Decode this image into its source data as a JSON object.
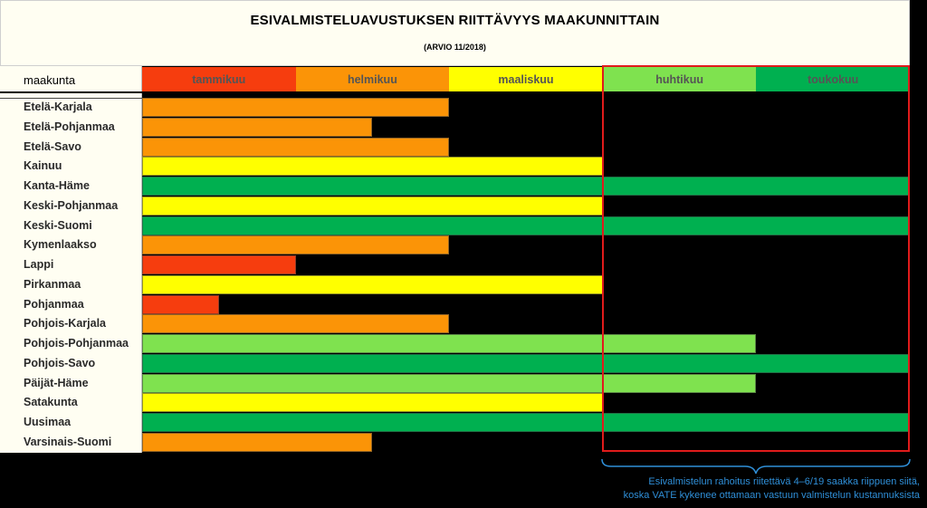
{
  "title": "ESIVALMISTELUAVUSTUKSEN RIITTÄVYYS MAAKUNNITTAIN",
  "subtitle": "(ARVIO 11/2018)",
  "label_header": "maakunta",
  "note": {
    "line1": "Esivalmistelun rahoitus riitettävä 4–6/19 saakka riippuen siitä,",
    "line2": "koska VATE kykenee ottamaan vastuun valmistelun kustannuksista"
  },
  "colors": {
    "tammikuu": "#f63d0e",
    "helmikuu": "#fb9407",
    "maaliskuu": "#ffff00",
    "huhtikuu": "#7fe24f",
    "toukokuu": "#00b050",
    "highlight": "#e01b1b",
    "note": "#2f8fd8"
  },
  "chart_data": {
    "type": "bar",
    "orientation": "horizontal",
    "title": "ESIVALMISTELUAVUSTUKSEN RIITTÄVYYS MAAKUNNITTAIN",
    "subtitle": "(ARVIO 11/2018)",
    "category_header": "maakunta",
    "months": [
      "tammikuu",
      "helmikuu",
      "maaliskuu",
      "huhtikuu",
      "toukokuu"
    ],
    "xlim": [
      0,
      5
    ],
    "unit": "months of funding",
    "highlight_months": [
      "huhtikuu",
      "toukokuu"
    ],
    "categories": [
      "Etelä-Karjala",
      "Etelä-Pohjanmaa",
      "Etelä-Savo",
      "Kainuu",
      "Kanta-Häme",
      "Keski-Pohjanmaa",
      "Keski-Suomi",
      "Kymenlaakso",
      "Lappi",
      "Pirkanmaa",
      "Pohjanmaa",
      "Pohjois-Karjala",
      "Pohjois-Pohjanmaa",
      "Pohjois-Savo",
      "Päijät-Häme",
      "Satakunta",
      "Uusimaa",
      "Varsinais-Suomi"
    ],
    "values": [
      2,
      1.5,
      2,
      3,
      5,
      3,
      5,
      2,
      1,
      3,
      0.5,
      2,
      4,
      5,
      4,
      3,
      5,
      1.5
    ],
    "color_month": [
      "helmikuu",
      "helmikuu",
      "helmikuu",
      "maaliskuu",
      "toukokuu",
      "maaliskuu",
      "toukokuu",
      "helmikuu",
      "tammikuu",
      "maaliskuu",
      "tammikuu",
      "helmikuu",
      "huhtikuu",
      "toukokuu",
      "huhtikuu",
      "maaliskuu",
      "toukokuu",
      "helmikuu"
    ],
    "grid": false,
    "legend": "none"
  }
}
